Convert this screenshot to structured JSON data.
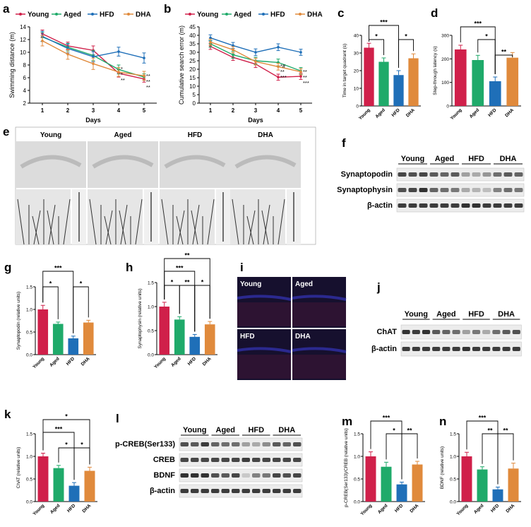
{
  "colors": {
    "young": "#d0204a",
    "aged": "#1faa6a",
    "hfd": "#1f6fb8",
    "dha": "#e08a3c"
  },
  "groups": [
    "Young",
    "Aged",
    "HFD",
    "DHA"
  ],
  "panels": {
    "a": {
      "letter": "a"
    },
    "b": {
      "letter": "b"
    },
    "c": {
      "letter": "c"
    },
    "d": {
      "letter": "d"
    },
    "e": {
      "letter": "e",
      "labels": [
        "Young",
        "Aged",
        "HFD",
        "DHA"
      ]
    },
    "f": {
      "letter": "f",
      "rows": [
        "Synaptopodin",
        "Synaptophysin",
        "β-actin"
      ]
    },
    "g": {
      "letter": "g"
    },
    "h": {
      "letter": "h"
    },
    "i": {
      "letter": "i",
      "labels": [
        "Young",
        "Aged",
        "HFD",
        "DHA"
      ]
    },
    "j": {
      "letter": "j",
      "rows": [
        "ChAT",
        "β-actin"
      ]
    },
    "k": {
      "letter": "k"
    },
    "l": {
      "letter": "l",
      "rows": [
        "p-CREB(Ser133)",
        "CREB",
        "BDNF",
        "β-actin"
      ]
    },
    "m": {
      "letter": "m"
    },
    "n": {
      "letter": "n"
    }
  },
  "chart_data": [
    {
      "id": "a",
      "type": "line",
      "title": "",
      "xlabel": "Days",
      "ylabel": "Swimming distance (m)",
      "x": [
        1,
        2,
        3,
        4,
        5
      ],
      "xlim": [
        0.5,
        5.5
      ],
      "ylim": [
        2,
        14
      ],
      "yticks": [
        2,
        4,
        6,
        8,
        10,
        12,
        14
      ],
      "legend": [
        "Young",
        "Aged",
        "HFD",
        "DHA"
      ],
      "series": [
        {
          "name": "Young",
          "values": [
            12.9,
            11.0,
            10.3,
            6.7,
            5.8
          ],
          "err": [
            0.6,
            0.6,
            0.7,
            0.6,
            0.5
          ]
        },
        {
          "name": "Aged",
          "values": [
            12.4,
            10.8,
            9.5,
            7.3,
            6.1
          ],
          "err": [
            0.7,
            0.6,
            0.8,
            0.7,
            0.5
          ]
        },
        {
          "name": "HFD",
          "values": [
            12.5,
            10.6,
            9.3,
            10.1,
            9.1
          ],
          "err": [
            0.8,
            0.7,
            0.8,
            0.7,
            0.8
          ]
        },
        {
          "name": "DHA",
          "values": [
            11.8,
            9.7,
            8.2,
            6.9,
            6.3
          ],
          "err": [
            0.8,
            0.8,
            0.9,
            0.7,
            0.7
          ]
        }
      ],
      "annotations": [
        {
          "x": 4,
          "text": "*"
        },
        {
          "x": 4,
          "text": "*"
        },
        {
          "x": 4,
          "text": "**"
        },
        {
          "x": 5,
          "text": "**"
        },
        {
          "x": 5,
          "text": "**"
        },
        {
          "x": 5,
          "text": "**"
        }
      ]
    },
    {
      "id": "b",
      "type": "line",
      "title": "",
      "xlabel": "Days",
      "ylabel": "Cumulative search error (m)",
      "x": [
        1,
        2,
        3,
        4,
        5
      ],
      "xlim": [
        0.5,
        5.5
      ],
      "ylim": [
        0,
        45
      ],
      "yticks": [
        0,
        5,
        10,
        15,
        20,
        25,
        30,
        35,
        40,
        45
      ],
      "legend": [
        "Young",
        "Aged",
        "HFD",
        "DHA"
      ],
      "series": [
        {
          "name": "Young",
          "values": [
            33.5,
            27.0,
            23.0,
            15.3,
            15.8
          ],
          "err": [
            1.8,
            1.8,
            2.0,
            1.8,
            1.8
          ]
        },
        {
          "name": "Aged",
          "values": [
            35.0,
            28.5,
            25.0,
            24.0,
            19.0
          ],
          "err": [
            2.0,
            2.0,
            2.0,
            2.0,
            2.0
          ]
        },
        {
          "name": "HFD",
          "values": [
            38.5,
            34.0,
            30.0,
            33.0,
            30.0
          ],
          "err": [
            1.8,
            1.8,
            2.0,
            2.0,
            1.8
          ]
        },
        {
          "name": "DHA",
          "values": [
            36.0,
            31.5,
            24.5,
            21.5,
            18.5
          ],
          "err": [
            1.8,
            1.8,
            2.0,
            2.0,
            1.8
          ]
        }
      ],
      "annotations": [
        {
          "x": 4,
          "text": "*#"
        },
        {
          "x": 4,
          "text": "**"
        },
        {
          "x": 4,
          "text": "***"
        },
        {
          "x": 5,
          "text": "**"
        },
        {
          "x": 5,
          "text": "**"
        },
        {
          "x": 5,
          "text": "***"
        }
      ]
    },
    {
      "id": "c",
      "type": "bar",
      "ylabel": "Time in target quadrant (s)",
      "categories": [
        "Young",
        "Aged",
        "HFD",
        "DHA"
      ],
      "values": [
        33,
        25,
        17.5,
        27
      ],
      "err": [
        2.5,
        2.2,
        2.5,
        2.5
      ],
      "ylim": [
        0,
        40
      ],
      "yticks": [
        0,
        10,
        20,
        30,
        40
      ],
      "brackets": [
        {
          "from": 0,
          "to": 2,
          "text": "***"
        },
        {
          "from": 0,
          "to": 1,
          "text": "*"
        },
        {
          "from": 2,
          "to": 3,
          "text": "*"
        }
      ]
    },
    {
      "id": "d",
      "type": "bar",
      "ylabel": "Step-through latency (s)",
      "categories": [
        "Young",
        "Aged",
        "HFD",
        "DHA"
      ],
      "values": [
        240,
        195,
        105,
        205
      ],
      "err": [
        18,
        20,
        18,
        22
      ],
      "ylim": [
        0,
        300
      ],
      "yticks": [
        0,
        100,
        200,
        300
      ],
      "brackets": [
        {
          "from": 0,
          "to": 2,
          "text": "***"
        },
        {
          "from": 1,
          "to": 2,
          "text": "*"
        },
        {
          "from": 2,
          "to": 3,
          "text": "**"
        }
      ]
    },
    {
      "id": "g",
      "type": "bar",
      "ylabel": "Synaptopodin (relative units)",
      "categories": [
        "Young",
        "Aged",
        "HFD",
        "DHA"
      ],
      "values": [
        1.0,
        0.68,
        0.36,
        0.71
      ],
      "err": [
        0.09,
        0.04,
        0.05,
        0.05
      ],
      "ylim": [
        0,
        1.5
      ],
      "yticks": [
        0.0,
        0.5,
        1.0,
        1.5
      ],
      "brackets": [
        {
          "from": 0,
          "to": 2,
          "text": "***"
        },
        {
          "from": 0,
          "to": 1,
          "text": "*"
        },
        {
          "from": 2,
          "to": 3,
          "text": "*"
        }
      ]
    },
    {
      "id": "h",
      "type": "bar",
      "ylabel": "Synaptophysin (relative units)",
      "categories": [
        "Young",
        "Aged",
        "HFD",
        "DHA"
      ],
      "values": [
        1.0,
        0.73,
        0.37,
        0.63
      ],
      "err": [
        0.09,
        0.06,
        0.05,
        0.06
      ],
      "ylim": [
        0,
        1.5
      ],
      "yticks": [
        0.0,
        0.5,
        1.0,
        1.5
      ],
      "brackets": [
        {
          "from": 0,
          "to": 3,
          "text": "**"
        },
        {
          "from": 0,
          "to": 2,
          "text": "***"
        },
        {
          "from": 0,
          "to": 1,
          "text": "*"
        },
        {
          "from": 1,
          "to": 2,
          "text": "**"
        },
        {
          "from": 2,
          "to": 3,
          "text": "*"
        }
      ]
    },
    {
      "id": "k",
      "type": "bar",
      "ylabel": "ChAT (relative units)",
      "categories": [
        "Young",
        "Aged",
        "HFD",
        "DHA"
      ],
      "values": [
        1.0,
        0.74,
        0.35,
        0.68
      ],
      "err": [
        0.07,
        0.06,
        0.07,
        0.08
      ],
      "ylim": [
        0,
        1.5
      ],
      "yticks": [
        0.0,
        0.5,
        1.0,
        1.5
      ],
      "brackets": [
        {
          "from": 0,
          "to": 3,
          "text": "*"
        },
        {
          "from": 0,
          "to": 2,
          "text": "***"
        },
        {
          "from": 1,
          "to": 2,
          "text": "*"
        },
        {
          "from": 2,
          "to": 3,
          "text": "*"
        }
      ]
    },
    {
      "id": "m",
      "type": "bar",
      "ylabel": "p-CREB(Ser133)/CREB (relative units)",
      "categories": [
        "Young",
        "Aged",
        "HFD",
        "DHA"
      ],
      "values": [
        1.0,
        0.77,
        0.38,
        0.82
      ],
      "err": [
        0.1,
        0.1,
        0.05,
        0.07
      ],
      "ylim": [
        0,
        1.5
      ],
      "yticks": [
        0.0,
        0.5,
        1.0,
        1.5
      ],
      "brackets": [
        {
          "from": 0,
          "to": 2,
          "text": "***"
        },
        {
          "from": 1,
          "to": 2,
          "text": "*"
        },
        {
          "from": 2,
          "to": 3,
          "text": "**"
        }
      ]
    },
    {
      "id": "n",
      "type": "bar",
      "ylabel": "BDNF (relative units)",
      "categories": [
        "Young",
        "Aged",
        "HFD",
        "DHA"
      ],
      "values": [
        1.0,
        0.71,
        0.27,
        0.73
      ],
      "err": [
        0.09,
        0.06,
        0.05,
        0.12
      ],
      "ylim": [
        0,
        1.5
      ],
      "yticks": [
        0.0,
        0.5,
        1.0,
        1.5
      ],
      "brackets": [
        {
          "from": 0,
          "to": 2,
          "text": "***"
        },
        {
          "from": 1,
          "to": 2,
          "text": "**"
        },
        {
          "from": 2,
          "to": 3,
          "text": "**"
        }
      ]
    }
  ]
}
